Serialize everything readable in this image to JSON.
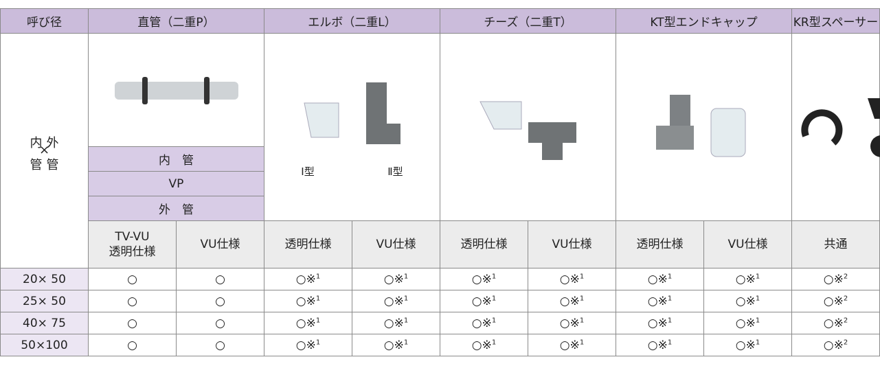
{
  "table": {
    "header": [
      "呼び径",
      "直管（二重P）",
      "エルボ（二重L）",
      "チーズ（二重T）",
      "KT型エンドキャップ",
      "KR型スペーサー"
    ],
    "size_label": {
      "top_left": "内",
      "top_right": "外",
      "cross": "×",
      "bottom_left": "管",
      "bottom_right": "管"
    },
    "pipe_rows": [
      "内　管",
      "VP",
      "外　管"
    ],
    "elbow_types": [
      "Ⅰ型",
      "Ⅱ型"
    ],
    "specs": [
      "TV-VU\n透明仕様",
      "VU仕様",
      "透明仕様",
      "VU仕様",
      "透明仕様",
      "VU仕様",
      "透明仕様",
      "VU仕様",
      "共通"
    ],
    "rows": [
      {
        "size": "20× 50",
        "cells": [
          "○",
          "○",
          {
            "text": "○※",
            "sup": "1"
          },
          {
            "text": "○※",
            "sup": "1"
          },
          {
            "text": "○※",
            "sup": "1"
          },
          {
            "text": "○※",
            "sup": "1"
          },
          {
            "text": "○※",
            "sup": "1"
          },
          {
            "text": "○※",
            "sup": "1"
          },
          {
            "text": "○※",
            "sup": "2"
          }
        ]
      },
      {
        "size": "25× 50",
        "cells": [
          "○",
          "○",
          {
            "text": "○※",
            "sup": "1"
          },
          {
            "text": "○※",
            "sup": "1"
          },
          {
            "text": "○※",
            "sup": "1"
          },
          {
            "text": "○※",
            "sup": "1"
          },
          {
            "text": "○※",
            "sup": "1"
          },
          {
            "text": "○※",
            "sup": "1"
          },
          {
            "text": "○※",
            "sup": "2"
          }
        ]
      },
      {
        "size": "40× 75",
        "cells": [
          "○",
          "○",
          {
            "text": "○※",
            "sup": "1"
          },
          {
            "text": "○※",
            "sup": "1"
          },
          {
            "text": "○※",
            "sup": "1"
          },
          {
            "text": "○※",
            "sup": "1"
          },
          {
            "text": "○※",
            "sup": "1"
          },
          {
            "text": "○※",
            "sup": "1"
          },
          {
            "text": "○※",
            "sup": "2"
          }
        ]
      },
      {
        "size": "50×100",
        "cells": [
          "○",
          "○",
          {
            "text": "○※",
            "sup": "1"
          },
          {
            "text": "○※",
            "sup": "1"
          },
          {
            "text": "○※",
            "sup": "1"
          },
          {
            "text": "○※",
            "sup": "1"
          },
          {
            "text": "○※",
            "sup": "1"
          },
          {
            "text": "○※",
            "sup": "1"
          },
          {
            "text": "○※",
            "sup": "2"
          }
        ]
      }
    ]
  }
}
